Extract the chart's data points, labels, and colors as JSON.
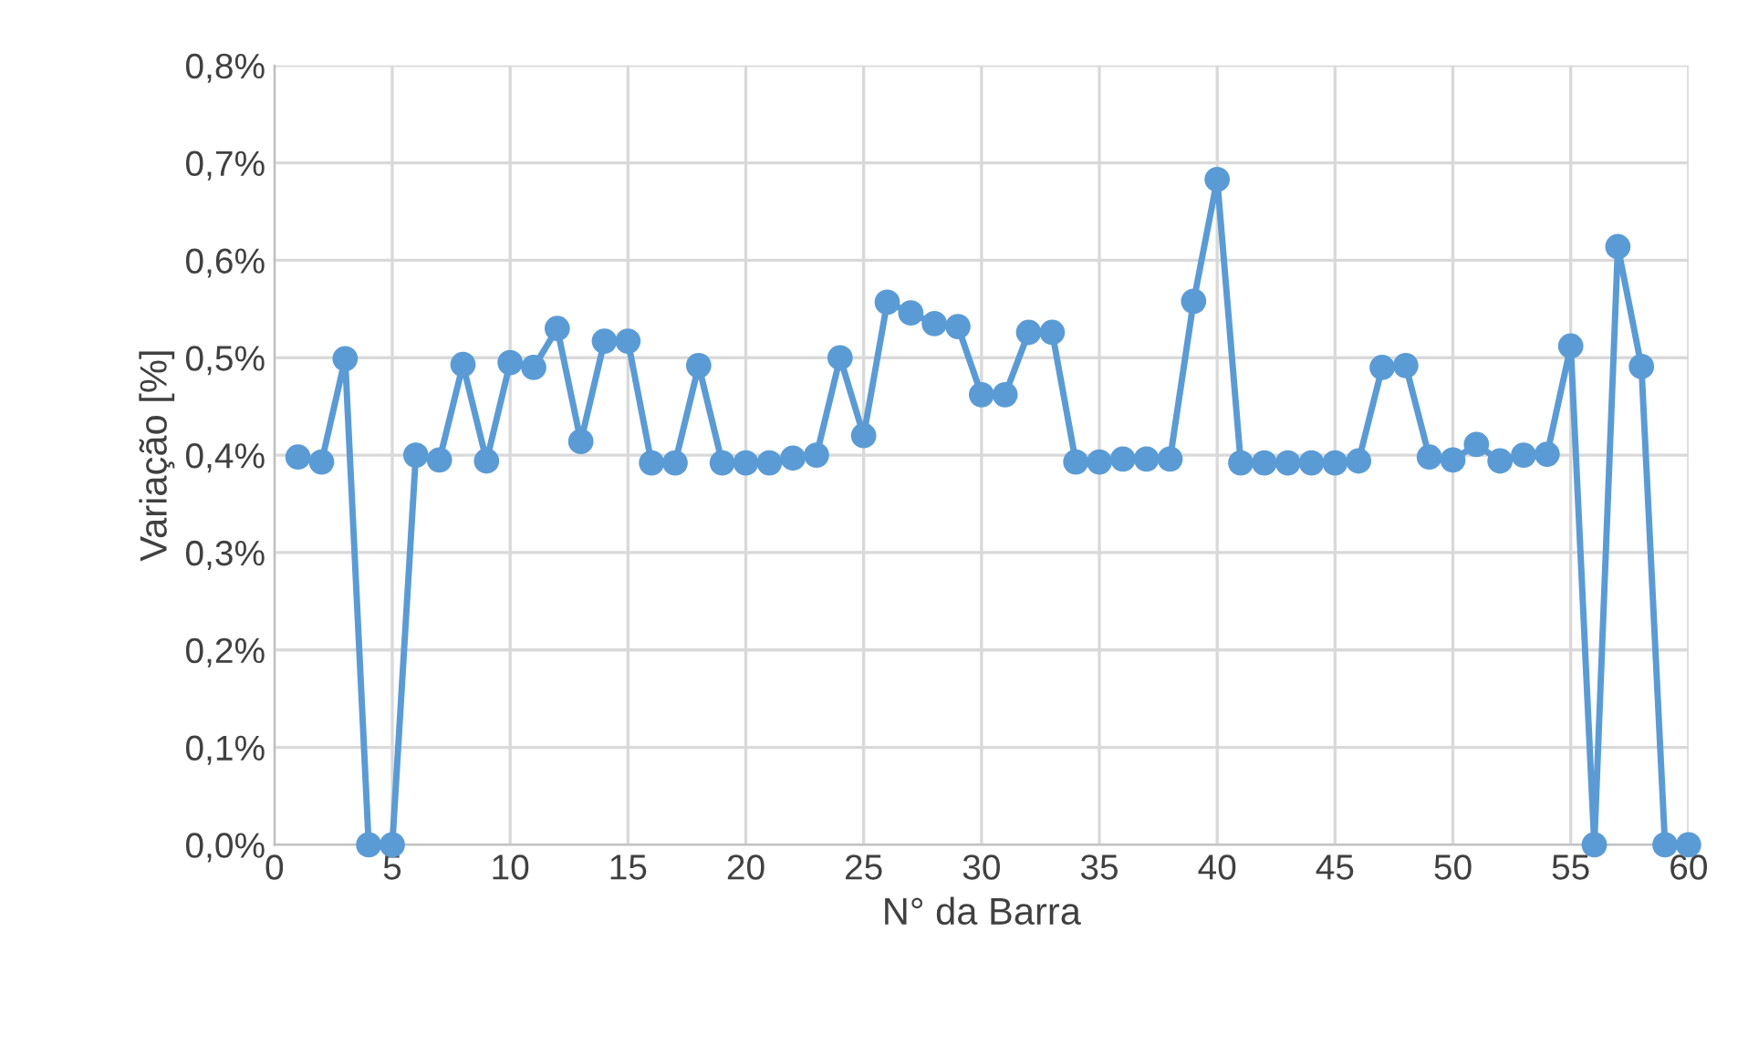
{
  "chart_data": {
    "type": "line",
    "xlabel": "N° da Barra",
    "ylabel": "Variação [%]",
    "x": [
      1,
      2,
      3,
      4,
      5,
      6,
      7,
      8,
      9,
      10,
      11,
      12,
      13,
      14,
      15,
      16,
      17,
      18,
      19,
      20,
      21,
      22,
      23,
      24,
      25,
      26,
      27,
      28,
      29,
      30,
      31,
      32,
      33,
      34,
      35,
      36,
      37,
      38,
      39,
      40,
      41,
      42,
      43,
      44,
      45,
      46,
      47,
      48,
      49,
      50,
      51,
      52,
      53,
      54,
      55,
      56,
      57,
      58,
      59,
      60
    ],
    "series": [
      {
        "color": "#5b9bd5",
        "values": [
          0.398,
          0.393,
          0.499,
          0,
          0,
          0.4,
          0.395,
          0.493,
          0.394,
          0.495,
          0.49,
          0.53,
          0.414,
          0.517,
          0.517,
          0.392,
          0.392,
          0.492,
          0.392,
          0.392,
          0.392,
          0.397,
          0.4,
          0.5,
          0.42,
          0.557,
          0.546,
          0.535,
          0.532,
          0.462,
          0.462,
          0.526,
          0.526,
          0.393,
          0.393,
          0.396,
          0.396,
          0.396,
          0.558,
          0.683,
          0.392,
          0.392,
          0.392,
          0.392,
          0.392,
          0.394,
          0.49,
          0.492,
          0.398,
          0.395,
          0.411,
          0.394,
          0.4,
          0.401,
          0.512,
          0,
          0.614,
          0.491,
          0,
          0
        ]
      }
    ],
    "xlim": [
      0,
      60
    ],
    "xticks": [
      0,
      5,
      10,
      15,
      20,
      25,
      30,
      35,
      40,
      45,
      50,
      55,
      60
    ],
    "ylim": [
      0,
      0.8
    ],
    "yticks": [
      {
        "value": 0,
        "label": "0,0%"
      },
      {
        "value": 0.1,
        "label": "0,1%"
      },
      {
        "value": 0.2,
        "label": "0,2%"
      },
      {
        "value": 0.3,
        "label": "0,3%"
      },
      {
        "value": 0.4,
        "label": "0,4%"
      },
      {
        "value": 0.5,
        "label": "0,5%"
      },
      {
        "value": 0.6,
        "label": "0,6%"
      },
      {
        "value": 0.7,
        "label": "0,7%"
      },
      {
        "value": 0.8,
        "label": "0,8%"
      }
    ],
    "grid": true,
    "marker": "circle",
    "line_style": "solid"
  }
}
